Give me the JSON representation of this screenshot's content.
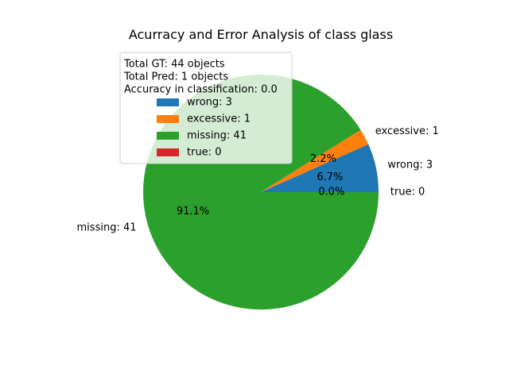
{
  "chart_data": {
    "type": "pie",
    "title": "Acurracy and Error Analysis of class glass",
    "slices": [
      {
        "name": "wrong",
        "value": 3,
        "label": "wrong: 3",
        "pct_label": "6.7%",
        "color": "#1f77b4"
      },
      {
        "name": "excessive",
        "value": 1,
        "label": "excessive: 1",
        "pct_label": "2.2%",
        "color": "#ff7f0e"
      },
      {
        "name": "missing",
        "value": 41,
        "label": "missing: 41",
        "pct_label": "91.1%",
        "color": "#2ca02c"
      },
      {
        "name": "true",
        "value": 0,
        "label": "true: 0",
        "pct_label": "0.0%",
        "color": "#d62728"
      }
    ],
    "legend": {
      "placement": "upper-left",
      "info_lines": [
        "Total GT: 44 objects",
        "Total Pred: 1 objects",
        "Accuracy in classification: 0.0"
      ],
      "entries": [
        {
          "label": "wrong: 3",
          "color": "#1f77b4"
        },
        {
          "label": "excessive: 1",
          "color": "#ff7f0e"
        },
        {
          "label": "missing: 41",
          "color": "#2ca02c"
        },
        {
          "label": "true: 0",
          "color": "#d62728"
        }
      ]
    }
  }
}
